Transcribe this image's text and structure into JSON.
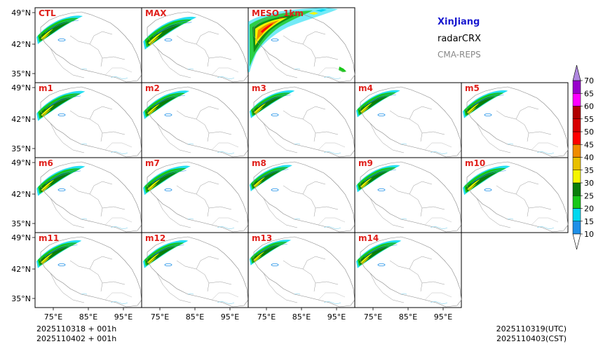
{
  "info": {
    "region": "XinJiang",
    "product": "radarCRX",
    "model": "CMA-REPS"
  },
  "panels": [
    {
      "label": "CTL",
      "row": 0,
      "col": 0,
      "intensity": 1.0
    },
    {
      "label": "MAX",
      "row": 0,
      "col": 1,
      "intensity": 1.6
    },
    {
      "label": "MESO_1km",
      "row": 0,
      "col": 2,
      "intensity": 3.0
    },
    {
      "label": "m1",
      "row": 1,
      "col": 0,
      "intensity": 1.2
    },
    {
      "label": "m2",
      "row": 1,
      "col": 1,
      "intensity": 1.0
    },
    {
      "label": "m3",
      "row": 1,
      "col": 2,
      "intensity": 0.9
    },
    {
      "label": "m4",
      "row": 1,
      "col": 3,
      "intensity": 0.8
    },
    {
      "label": "m5",
      "row": 1,
      "col": 4,
      "intensity": 0.9
    },
    {
      "label": "m6",
      "row": 2,
      "col": 0,
      "intensity": 1.2
    },
    {
      "label": "m7",
      "row": 2,
      "col": 1,
      "intensity": 1.1
    },
    {
      "label": "m8",
      "row": 2,
      "col": 2,
      "intensity": 0.7
    },
    {
      "label": "m9",
      "row": 2,
      "col": 3,
      "intensity": 0.8
    },
    {
      "label": "m10",
      "row": 2,
      "col": 4,
      "intensity": 1.1
    },
    {
      "label": "m11",
      "row": 3,
      "col": 0,
      "intensity": 0.9
    },
    {
      "label": "m12",
      "row": 3,
      "col": 1,
      "intensity": 0.9
    },
    {
      "label": "m13",
      "row": 3,
      "col": 2,
      "intensity": 0.6
    },
    {
      "label": "m14",
      "row": 3,
      "col": 3,
      "intensity": 0.9
    }
  ],
  "lat_ticks": [
    "49°N",
    "42°N",
    "35°N"
  ],
  "lon_ticks": [
    "75°E",
    "85°E",
    "95°E"
  ],
  "colorbar": {
    "levels": [
      "10",
      "15",
      "20",
      "25",
      "30",
      "35",
      "40",
      "45",
      "50",
      "55",
      "60",
      "65",
      "70"
    ],
    "colors": [
      "#1e90e8",
      "#00d8f0",
      "#18c818",
      "#0a7e0a",
      "#f5f500",
      "#e8c000",
      "#f08c00",
      "#ff0000",
      "#d80000",
      "#b00000",
      "#ff00ff",
      "#9900cc",
      "#b088e0"
    ]
  },
  "footer": {
    "init_utc": "2025110318  +  001h",
    "init_cst": "2025110402  +  001h",
    "valid_utc": "2025110319(UTC)",
    "valid_cst": "2025110403(CST)"
  }
}
